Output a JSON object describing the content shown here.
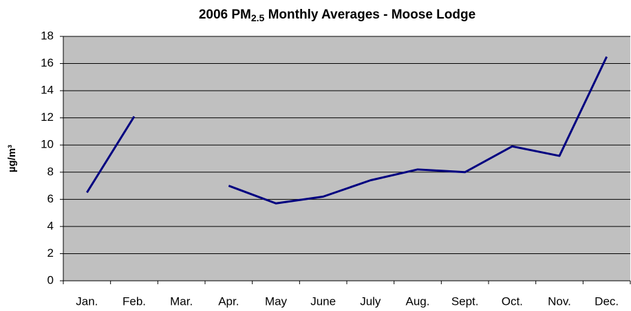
{
  "chart_data": {
    "type": "line",
    "title": [
      "2006 PM",
      "2.5",
      " Monthly Averages - Moose Lodge"
    ],
    "y_label": "µg/m³",
    "categories": [
      "Jan.",
      "Feb.",
      "Mar.",
      "Apr.",
      "May",
      "June",
      "July",
      "Aug.",
      "Sept.",
      "Oct.",
      "Nov.",
      "Dec."
    ],
    "values": [
      6.5,
      12.1,
      null,
      7.0,
      5.7,
      6.2,
      7.4,
      8.2,
      8.0,
      9.9,
      9.2,
      16.5
    ],
    "color": "#000080",
    "ylim": [
      0,
      18
    ],
    "yticks": [
      0,
      2,
      4,
      6,
      8,
      10,
      12,
      14,
      16,
      18
    ],
    "grid": true
  }
}
